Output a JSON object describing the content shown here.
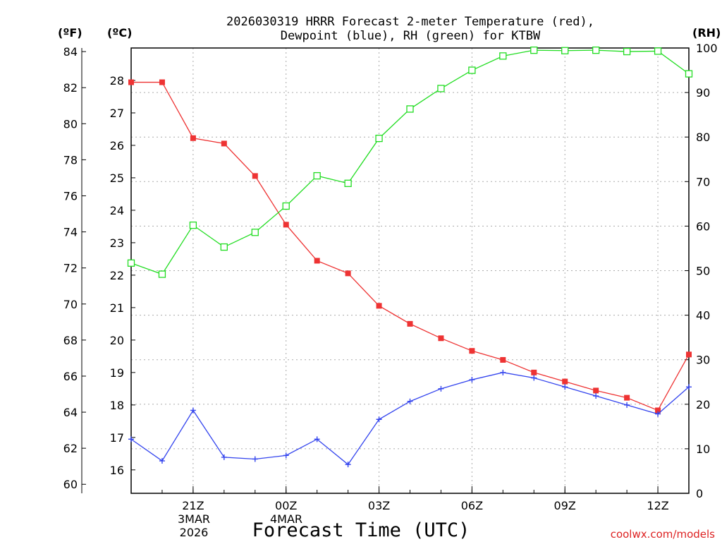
{
  "title_line1": "2026030319 HRRR Forecast 2-meter Temperature (red),",
  "title_line2": "Dewpoint (blue), RH (green) for KTBW",
  "unit_f": "(ºF)",
  "unit_c": "(ºC)",
  "unit_rh": "(RH)",
  "xlabel": "Forecast Time (UTC)",
  "watermark": "coolwx.com/models",
  "x_date_line1": "3MAR",
  "x_date_line2": "2026",
  "x_date_line1b": "4MAR",
  "chart_data": {
    "type": "line",
    "x": [
      "19Z",
      "20Z",
      "21Z",
      "22Z",
      "23Z",
      "00Z",
      "01Z",
      "02Z",
      "03Z",
      "04Z",
      "05Z",
      "06Z",
      "07Z",
      "08Z",
      "09Z",
      "10Z",
      "11Z",
      "12Z",
      "13Z"
    ],
    "x_tick_labels": [
      "21Z",
      "00Z",
      "03Z",
      "06Z",
      "09Z",
      "12Z"
    ],
    "y_left_f": {
      "ylim": [
        59.5,
        84.2
      ],
      "ticks": [
        60,
        62,
        64,
        66,
        68,
        70,
        72,
        74,
        76,
        78,
        80,
        82,
        84
      ]
    },
    "y_left_c": {
      "ticks": [
        16,
        17,
        18,
        19,
        20,
        21,
        22,
        23,
        24,
        25,
        26,
        27,
        28
      ]
    },
    "y_right_rh": {
      "ylim": [
        0,
        100
      ],
      "ticks": [
        0,
        10,
        20,
        30,
        40,
        50,
        60,
        70,
        80,
        90,
        100
      ]
    },
    "series": [
      {
        "name": "Temperature (red)",
        "axis": "F",
        "color": "#ee3333",
        "marker": "filled-square",
        "values": [
          82.3,
          82.3,
          79.2,
          78.9,
          77.1,
          74.4,
          72.4,
          71.7,
          69.9,
          68.9,
          68.1,
          67.4,
          66.9,
          66.2,
          65.7,
          65.2,
          64.8,
          64.1,
          67.2
        ]
      },
      {
        "name": "Dewpoint (blue)",
        "axis": "F",
        "color": "#3344ee",
        "marker": "plus",
        "values": [
          62.5,
          61.3,
          64.1,
          61.5,
          61.4,
          61.6,
          62.5,
          61.1,
          63.6,
          64.6,
          65.3,
          65.8,
          66.2,
          65.9,
          65.4,
          64.9,
          64.4,
          63.9,
          65.4
        ]
      },
      {
        "name": "RH (green)",
        "axis": "RH",
        "color": "#22dd22",
        "marker": "open-square",
        "values": [
          51.7,
          49.2,
          60.2,
          55.3,
          58.6,
          64.5,
          71.3,
          69.6,
          79.7,
          86.3,
          90.9,
          95.0,
          98.2,
          99.5,
          99.4,
          99.5,
          99.2,
          99.3,
          94.2
        ]
      }
    ],
    "grid": true
  }
}
